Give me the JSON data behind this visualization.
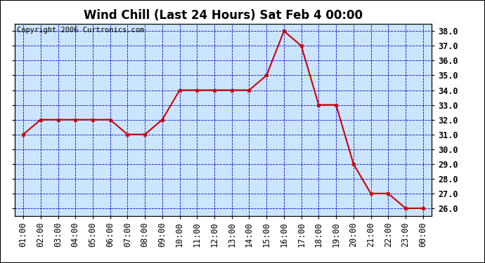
{
  "title": "Wind Chill (Last 24 Hours) Sat Feb 4 00:00",
  "copyright": "Copyright 2006 Curtronics.com",
  "x_labels": [
    "01:00",
    "02:00",
    "03:00",
    "04:00",
    "05:00",
    "06:00",
    "07:00",
    "08:00",
    "09:00",
    "10:00",
    "11:00",
    "12:00",
    "13:00",
    "14:00",
    "15:00",
    "16:00",
    "17:00",
    "18:00",
    "19:00",
    "20:00",
    "21:00",
    "22:00",
    "23:00",
    "00:00"
  ],
  "y_values": [
    31.0,
    32.0,
    32.0,
    32.0,
    32.0,
    32.0,
    31.0,
    31.0,
    32.0,
    34.0,
    34.0,
    34.0,
    34.0,
    34.0,
    35.0,
    38.0,
    37.0,
    33.0,
    33.0,
    29.0,
    27.0,
    27.0,
    26.0,
    26.0
  ],
  "y_min": 26.0,
  "y_max": 38.0,
  "y_tick_interval": 1.0,
  "line_color": "#cc0000",
  "marker_color": "#cc0000",
  "background_color": "#cce5ff",
  "grid_color": "#0000cc",
  "title_fontsize": 12,
  "copyright_fontsize": 7.5,
  "axis_label_fontsize": 8.5,
  "right_label_fontweight": "bold"
}
